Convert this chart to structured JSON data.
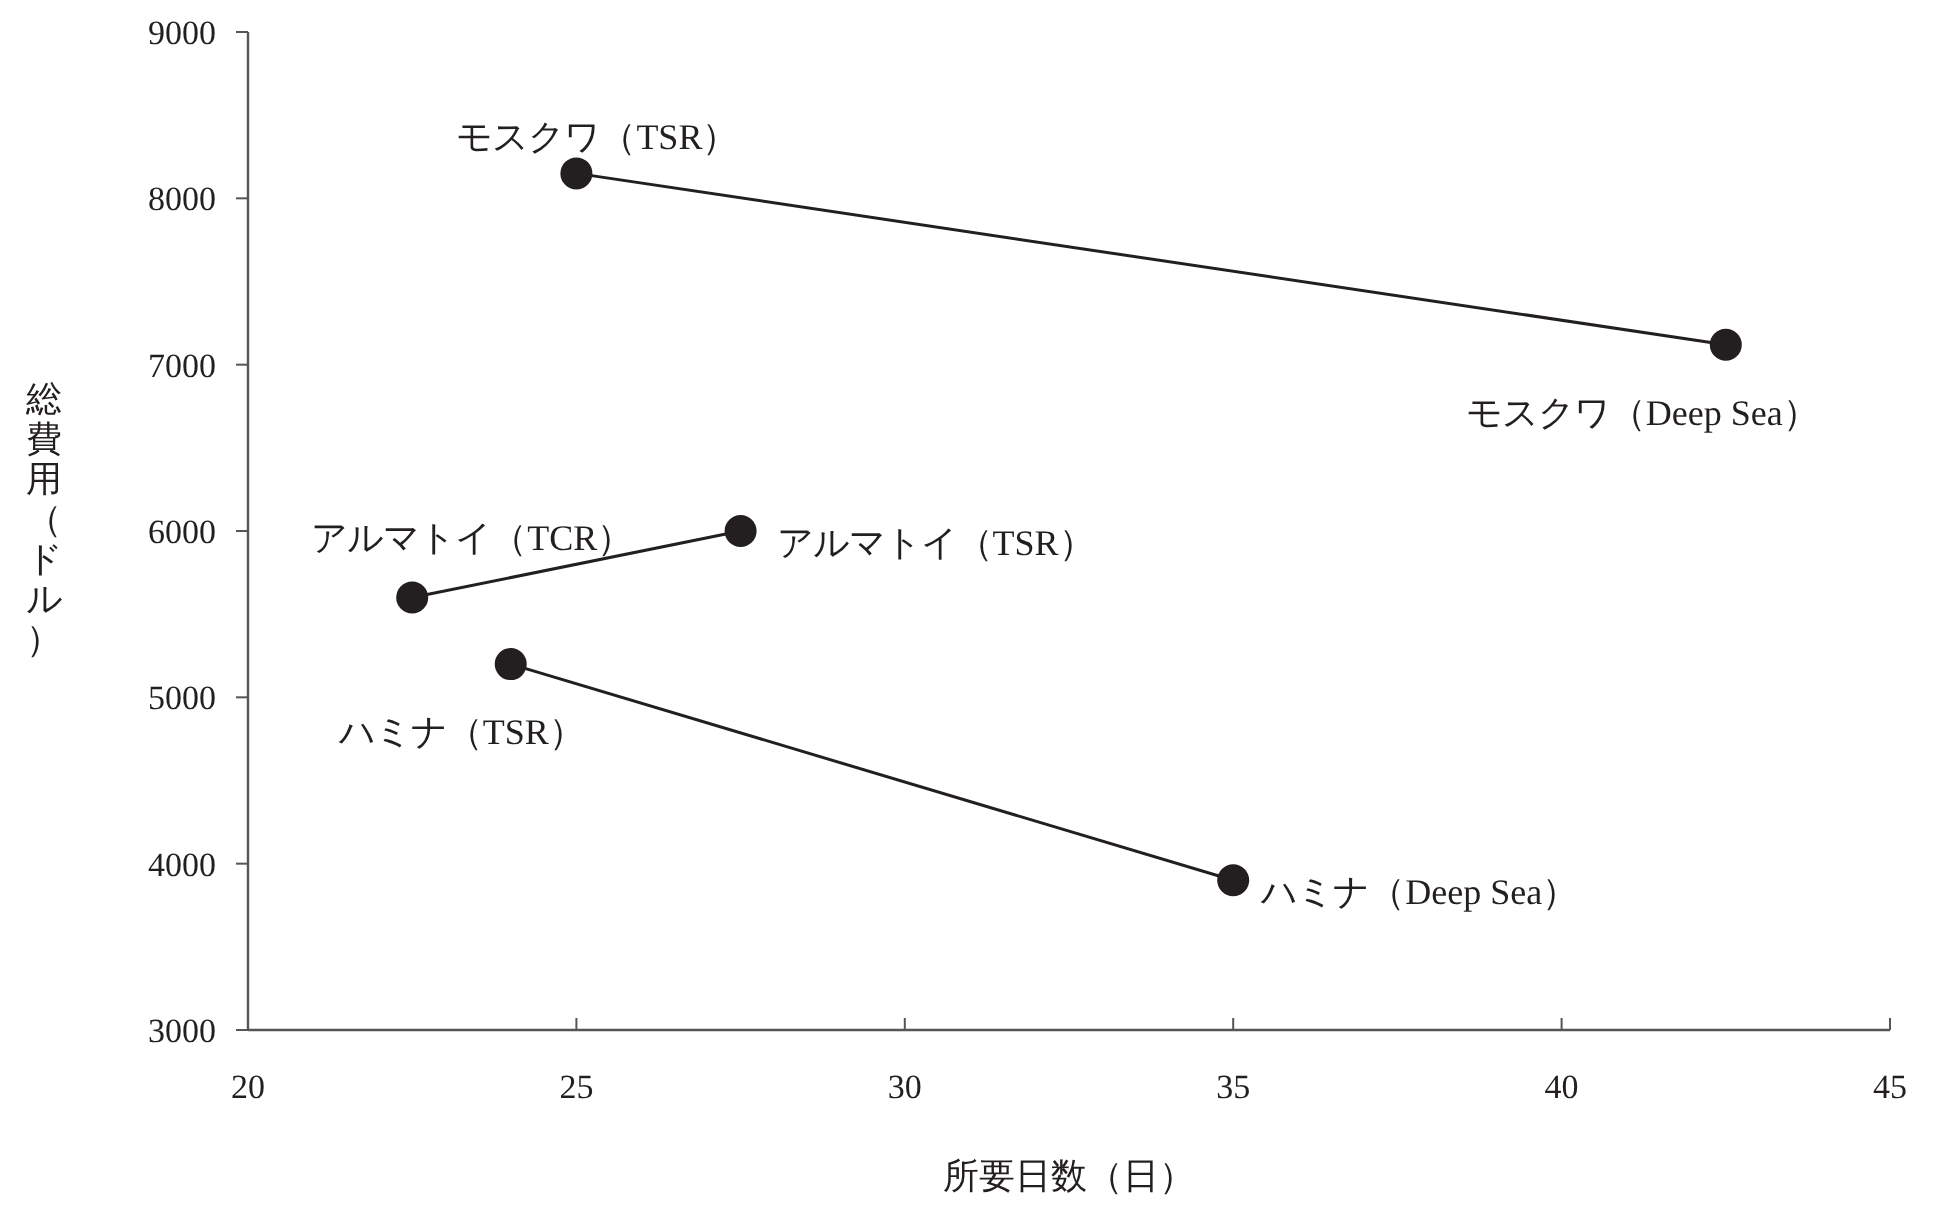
{
  "chart_data": {
    "type": "line",
    "xlabel": "所要日数（日）",
    "ylabel": "総費用（ドル）",
    "xlim": [
      20,
      45
    ],
    "xticks": [
      20,
      25,
      30,
      35,
      40,
      45
    ],
    "ylim": [
      3000,
      9000
    ],
    "yticks": [
      3000,
      4000,
      5000,
      6000,
      7000,
      8000,
      9000
    ],
    "marker": "circle",
    "line_style": "solid",
    "grid": false,
    "series": [
      {
        "color": "#231f20",
        "x": [
          25,
          42.5
        ],
        "values": [
          8150,
          7120
        ]
      },
      {
        "color": "#231f20",
        "x": [
          22.5,
          27.5
        ],
        "values": [
          5600,
          6000
        ]
      },
      {
        "color": "#231f20",
        "x": [
          24,
          35
        ],
        "values": [
          5200,
          3900
        ]
      }
    ],
    "annotations": [
      {
        "text": "モスクワ（TSR）",
        "x": 25,
        "y": 8150
      },
      {
        "text": "モスクワ（Deep Sea）",
        "x": 42.5,
        "y": 7120
      },
      {
        "text": "アルマトイ（TCR）",
        "x": 22.5,
        "y": 5600
      },
      {
        "text": "アルマトイ（TSR）",
        "x": 27.5,
        "y": 6000
      },
      {
        "text": "ハミナ（TSR）",
        "x": 24,
        "y": 5200
      },
      {
        "text": "ハミナ（Deep Sea）",
        "x": 35,
        "y": 3900
      }
    ]
  }
}
